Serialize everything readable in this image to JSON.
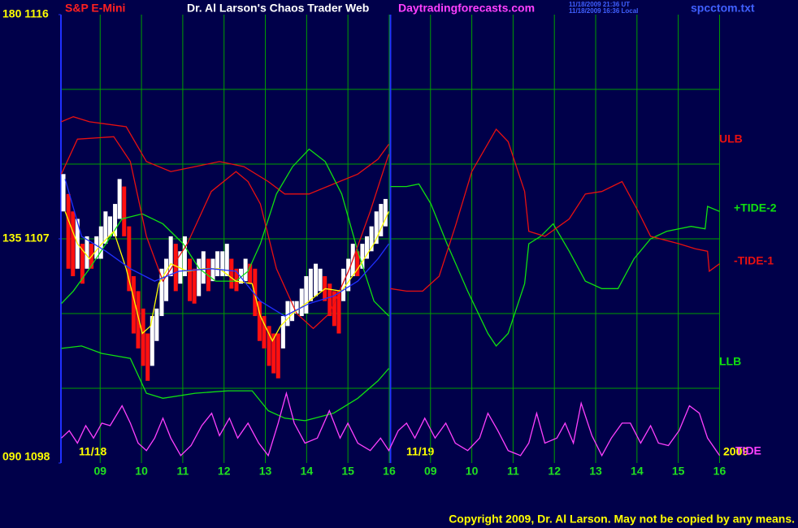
{
  "chart_data": {
    "type": "line",
    "title": "Dr. Al Larson's Chaos Trader Web",
    "instrument": "S&P E-Mini",
    "site": "Daytradingforecasts.com",
    "timestamps": [
      "11/18/2009 21:36 UT",
      "11/18/2009 16:36 Local"
    ],
    "file": "spcctom.txt",
    "dates": [
      "11/18",
      "11/19",
      "2009"
    ],
    "copyright": "Copyright 2009, Dr. Al Larson. May not be copied by any means.",
    "xlim": [
      0.05,
      16.05
    ],
    "xticks": [
      {
        "value": 1,
        "label": "09"
      },
      {
        "value": 2,
        "label": "10"
      },
      {
        "value": 3,
        "label": "11"
      },
      {
        "value": 4,
        "label": "12"
      },
      {
        "value": 5,
        "label": "13"
      },
      {
        "value": 6,
        "label": "14"
      },
      {
        "value": 7,
        "label": "15"
      },
      {
        "value": 8,
        "label": "16"
      },
      {
        "value": 9,
        "label": "09"
      },
      {
        "value": 10,
        "label": "10"
      },
      {
        "value": 11,
        "label": "11"
      },
      {
        "value": 12,
        "label": "12"
      },
      {
        "value": 13,
        "label": "13"
      },
      {
        "value": 14,
        "label": "14"
      },
      {
        "value": 15,
        "label": "15"
      },
      {
        "value": 16,
        "label": "16"
      }
    ],
    "ylim": [
      1098,
      1116
    ],
    "yticks": [
      {
        "value": 1098,
        "label": "090 1098"
      },
      {
        "value": 1107,
        "label": "135 1107"
      },
      {
        "value": 1116,
        "label": "180 1116"
      }
    ],
    "ygrid": [
      1101,
      1104,
      1107,
      1110,
      1113
    ],
    "grid": true,
    "grid_color": "#00a000",
    "session_break": 8.03,
    "series": [
      {
        "name": "ULB",
        "color": "#e81010",
        "x": [
          0.06,
          0.35,
          0.74,
          1.63,
          2.12,
          2.71,
          3.3,
          3.89,
          4.48,
          5.07,
          5.47,
          6.06,
          6.65,
          7.24,
          7.73,
          7.99
        ],
        "values": [
          1111.7,
          1111.9,
          1111.7,
          1111.5,
          1110.1,
          1109.7,
          1109.9,
          1110.1,
          1109.9,
          1109.3,
          1108.8,
          1108.8,
          1109.2,
          1109.6,
          1110.2,
          1110.8
        ]
      },
      {
        "name": "+TIDE-2",
        "color": "#10e010",
        "x": [
          0.06,
          0.35,
          0.74,
          1.14,
          1.53,
          2.02,
          2.52,
          3.01,
          3.4,
          3.8,
          4.29,
          4.58,
          4.88,
          5.27,
          5.66,
          6.06,
          6.45,
          6.85,
          7.24,
          7.63,
          7.99,
          8.0,
          8.03,
          8.42,
          8.72,
          9.01,
          9.4,
          9.9,
          10.39,
          10.59,
          10.88,
          11.28,
          11.38,
          11.67,
          11.97,
          12.36,
          12.75,
          13.15,
          13.54,
          13.93,
          14.33,
          14.72,
          15.31,
          15.65,
          15.71,
          16.0
        ],
        "values": [
          1104.4,
          1104.9,
          1105.8,
          1106.8,
          1107.8,
          1108.0,
          1107.6,
          1106.8,
          1105.8,
          1105.3,
          1105.3,
          1105.7,
          1106.8,
          1108.8,
          1109.9,
          1110.6,
          1110.1,
          1108.8,
          1106.5,
          1104.5,
          1103.9,
          null,
          1109.1,
          1109.1,
          1109.2,
          1108.4,
          1106.8,
          1104.9,
          1103.2,
          1102.7,
          1103.2,
          1105.2,
          1106.8,
          1107.1,
          1107.6,
          1106.5,
          1105.3,
          1105.0,
          1105.0,
          1106.2,
          1107.0,
          1107.3,
          1107.5,
          1107.4,
          1108.3,
          1108.1
        ]
      },
      {
        "name": "-TIDE-1",
        "color": "#e81010",
        "x": [
          0.06,
          0.45,
          1.33,
          1.73,
          2.12,
          2.52,
          3.11,
          3.69,
          4.29,
          4.58,
          4.88,
          5.27,
          5.76,
          6.16,
          6.55,
          7.04,
          7.54,
          7.93,
          7.99,
          8.0,
          8.03,
          8.42,
          8.81,
          9.21,
          9.6,
          10.0,
          10.59,
          10.88,
          11.28,
          11.38,
          11.77,
          12.36,
          12.75,
          13.15,
          13.64,
          14.03,
          14.33,
          15.02,
          15.41,
          15.71,
          15.75,
          16.0
        ],
        "values": [
          1109.6,
          1111.0,
          1111.1,
          1110.1,
          1107.1,
          1105.3,
          1106.8,
          1108.9,
          1109.7,
          1109.3,
          1108.4,
          1105.8,
          1104.0,
          1103.4,
          1104.0,
          1105.8,
          1108.1,
          1110.1,
          1110.4,
          null,
          1105.0,
          1104.9,
          1104.9,
          1105.5,
          1107.5,
          1109.7,
          1111.4,
          1110.9,
          1108.9,
          1107.3,
          1107.1,
          1107.8,
          1108.8,
          1108.9,
          1109.3,
          1108.1,
          1107.1,
          1106.8,
          1106.6,
          1106.5,
          1105.7,
          1106.0
        ]
      },
      {
        "name": "LLB",
        "color": "#10e010",
        "x": [
          0.06,
          0.55,
          1.04,
          1.73,
          2.12,
          2.52,
          3.3,
          4.09,
          4.68,
          5.07,
          5.47,
          5.96,
          6.65,
          7.24,
          7.73,
          7.99
        ],
        "values": [
          1102.6,
          1102.7,
          1102.4,
          1102.2,
          1100.8,
          1100.6,
          1100.8,
          1100.9,
          1100.9,
          1100.1,
          1099.8,
          1099.7,
          1100.0,
          1100.6,
          1101.3,
          1101.8
        ]
      },
      {
        "name": "TIDE",
        "color": "#ff40ff",
        "x": [
          0.06,
          0.25,
          0.45,
          0.65,
          0.84,
          1.04,
          1.24,
          1.53,
          1.73,
          1.92,
          2.12,
          2.32,
          2.52,
          2.71,
          2.95,
          3.2,
          3.46,
          3.7,
          3.89,
          4.13,
          4.33,
          4.58,
          4.84,
          5.07,
          5.31,
          5.51,
          5.7,
          5.96,
          6.26,
          6.55,
          6.81,
          7.0,
          7.24,
          7.54,
          7.79,
          7.99,
          8.22,
          8.42,
          8.62,
          8.86,
          9.11,
          9.37,
          9.6,
          9.9,
          10.19,
          10.39,
          10.63,
          10.88,
          11.18,
          11.38,
          11.57,
          11.77,
          12.06,
          12.26,
          12.46,
          12.65,
          12.91,
          13.15,
          13.38,
          13.64,
          13.84,
          14.09,
          14.33,
          14.52,
          14.76,
          15.02,
          15.27,
          15.51,
          15.71,
          16.0
        ],
        "values": [
          1099.0,
          1099.3,
          1098.8,
          1099.5,
          1099.0,
          1099.6,
          1099.5,
          1100.3,
          1099.6,
          1098.8,
          1098.5,
          1099.0,
          1099.8,
          1099.0,
          1098.3,
          1098.7,
          1099.5,
          1100.0,
          1099.1,
          1099.8,
          1099.0,
          1099.6,
          1098.8,
          1098.3,
          1099.6,
          1100.8,
          1099.6,
          1098.8,
          1099.0,
          1100.1,
          1099.0,
          1099.6,
          1098.8,
          1098.5,
          1099.0,
          1098.5,
          1099.3,
          1099.6,
          1099.0,
          1099.8,
          1099.0,
          1099.6,
          1098.8,
          1098.5,
          1099.0,
          1100.0,
          1099.3,
          1098.5,
          1098.3,
          1098.8,
          1100.0,
          1098.8,
          1099.0,
          1099.6,
          1098.8,
          1100.4,
          1099.1,
          1098.3,
          1099.0,
          1099.6,
          1099.6,
          1098.8,
          1099.5,
          1098.8,
          1098.7,
          1099.3,
          1100.3,
          1100.0,
          1099.0,
          1098.3
        ]
      },
      {
        "color": "#ffff00",
        "x": [
          0.15,
          0.45,
          0.74,
          1.04,
          1.33,
          1.63,
          1.83,
          2.02,
          2.22,
          2.42,
          2.71,
          3.11,
          3.5,
          3.89,
          4.29,
          4.68,
          4.88,
          5.17,
          5.37,
          5.66,
          6.06,
          6.45,
          6.85,
          7.24,
          7.63,
          7.99
        ],
        "values": [
          1108.1,
          1106.8,
          1106.2,
          1106.8,
          1107.3,
          1105.8,
          1104.5,
          1103.2,
          1103.5,
          1105.2,
          1106.0,
          1105.7,
          1105.8,
          1105.8,
          1105.3,
          1105.2,
          1103.9,
          1102.9,
          1103.5,
          1104.0,
          1104.5,
          1105.0,
          1104.9,
          1105.8,
          1106.8,
          1108.1
        ]
      },
      {
        "color": "#2030ff",
        "x": [
          0.15,
          0.55,
          1.14,
          1.73,
          2.32,
          2.91,
          3.69,
          4.29,
          4.88,
          5.47,
          6.06,
          6.65,
          7.24,
          7.73,
          7.99
        ],
        "values": [
          1109.4,
          1107.1,
          1106.5,
          1105.8,
          1105.3,
          1105.7,
          1105.8,
          1105.7,
          1104.5,
          1103.9,
          1104.4,
          1104.7,
          1105.3,
          1106.2,
          1106.8
        ]
      }
    ],
    "bars": {
      "up_color": "#ffffff",
      "down_color": "#ff1010",
      "x": [
        0.11,
        0.23,
        0.34,
        0.45,
        0.57,
        0.68,
        0.79,
        0.91,
        1.02,
        1.13,
        1.24,
        1.36,
        1.47,
        1.58,
        1.7,
        1.81,
        1.92,
        2.04,
        2.15,
        2.26,
        2.37,
        2.49,
        2.6,
        2.71,
        2.83,
        2.94,
        3.05,
        3.17,
        3.28,
        3.39,
        3.5,
        3.62,
        3.73,
        3.84,
        3.96,
        4.07,
        4.18,
        4.3,
        4.41,
        4.52,
        4.63,
        4.75,
        4.86,
        4.97,
        5.09,
        5.2,
        5.31,
        5.43,
        5.54,
        5.65,
        5.76,
        5.88,
        5.99,
        6.1,
        6.22,
        6.33,
        6.44,
        6.56,
        6.67,
        6.78,
        6.89,
        7.01,
        7.12,
        7.23,
        7.35,
        7.46,
        7.57,
        7.69,
        7.8,
        7.91
      ],
      "high": [
        1109.6,
        1108.8,
        1108.1,
        1107.8,
        1106.8,
        1107.1,
        1106.8,
        1107.1,
        1107.5,
        1108.1,
        1107.9,
        1108.4,
        1109.4,
        1109.1,
        1107.5,
        1105.5,
        1104.9,
        1104.2,
        1103.2,
        1103.9,
        1104.2,
        1105.8,
        1106.2,
        1107.1,
        1106.8,
        1106.5,
        1107.1,
        1106.2,
        1105.8,
        1106.2,
        1106.5,
        1106.2,
        1106.2,
        1106.5,
        1106.5,
        1106.8,
        1106.2,
        1105.8,
        1105.8,
        1106.2,
        1106.0,
        1105.8,
        1104.5,
        1103.9,
        1103.5,
        1103.2,
        1103.2,
        1103.9,
        1104.5,
        1104.5,
        1104.5,
        1105.0,
        1105.5,
        1105.8,
        1106.0,
        1105.8,
        1105.5,
        1105.2,
        1104.9,
        1104.9,
        1105.8,
        1106.2,
        1106.8,
        1106.5,
        1106.8,
        1107.1,
        1107.5,
        1108.1,
        1108.4,
        1108.6
      ],
      "low": [
        1108.1,
        1105.8,
        1105.5,
        1105.8,
        1105.2,
        1105.8,
        1105.8,
        1106.2,
        1106.2,
        1106.8,
        1107.1,
        1107.1,
        1107.8,
        1107.1,
        1104.9,
        1103.2,
        1102.6,
        1101.9,
        1101.3,
        1101.9,
        1102.9,
        1103.9,
        1104.5,
        1105.5,
        1104.9,
        1105.2,
        1105.5,
        1104.5,
        1104.4,
        1104.7,
        1105.2,
        1104.9,
        1105.3,
        1105.5,
        1105.5,
        1105.5,
        1105.0,
        1104.9,
        1105.2,
        1105.3,
        1105.2,
        1103.9,
        1102.9,
        1102.6,
        1101.9,
        1101.6,
        1101.4,
        1102.6,
        1103.5,
        1103.7,
        1104.0,
        1103.9,
        1104.0,
        1104.5,
        1104.7,
        1104.9,
        1104.5,
        1103.9,
        1103.5,
        1103.2,
        1104.5,
        1104.9,
        1105.5,
        1105.5,
        1105.8,
        1106.2,
        1106.5,
        1106.8,
        1107.1,
        1107.5
      ]
    }
  }
}
